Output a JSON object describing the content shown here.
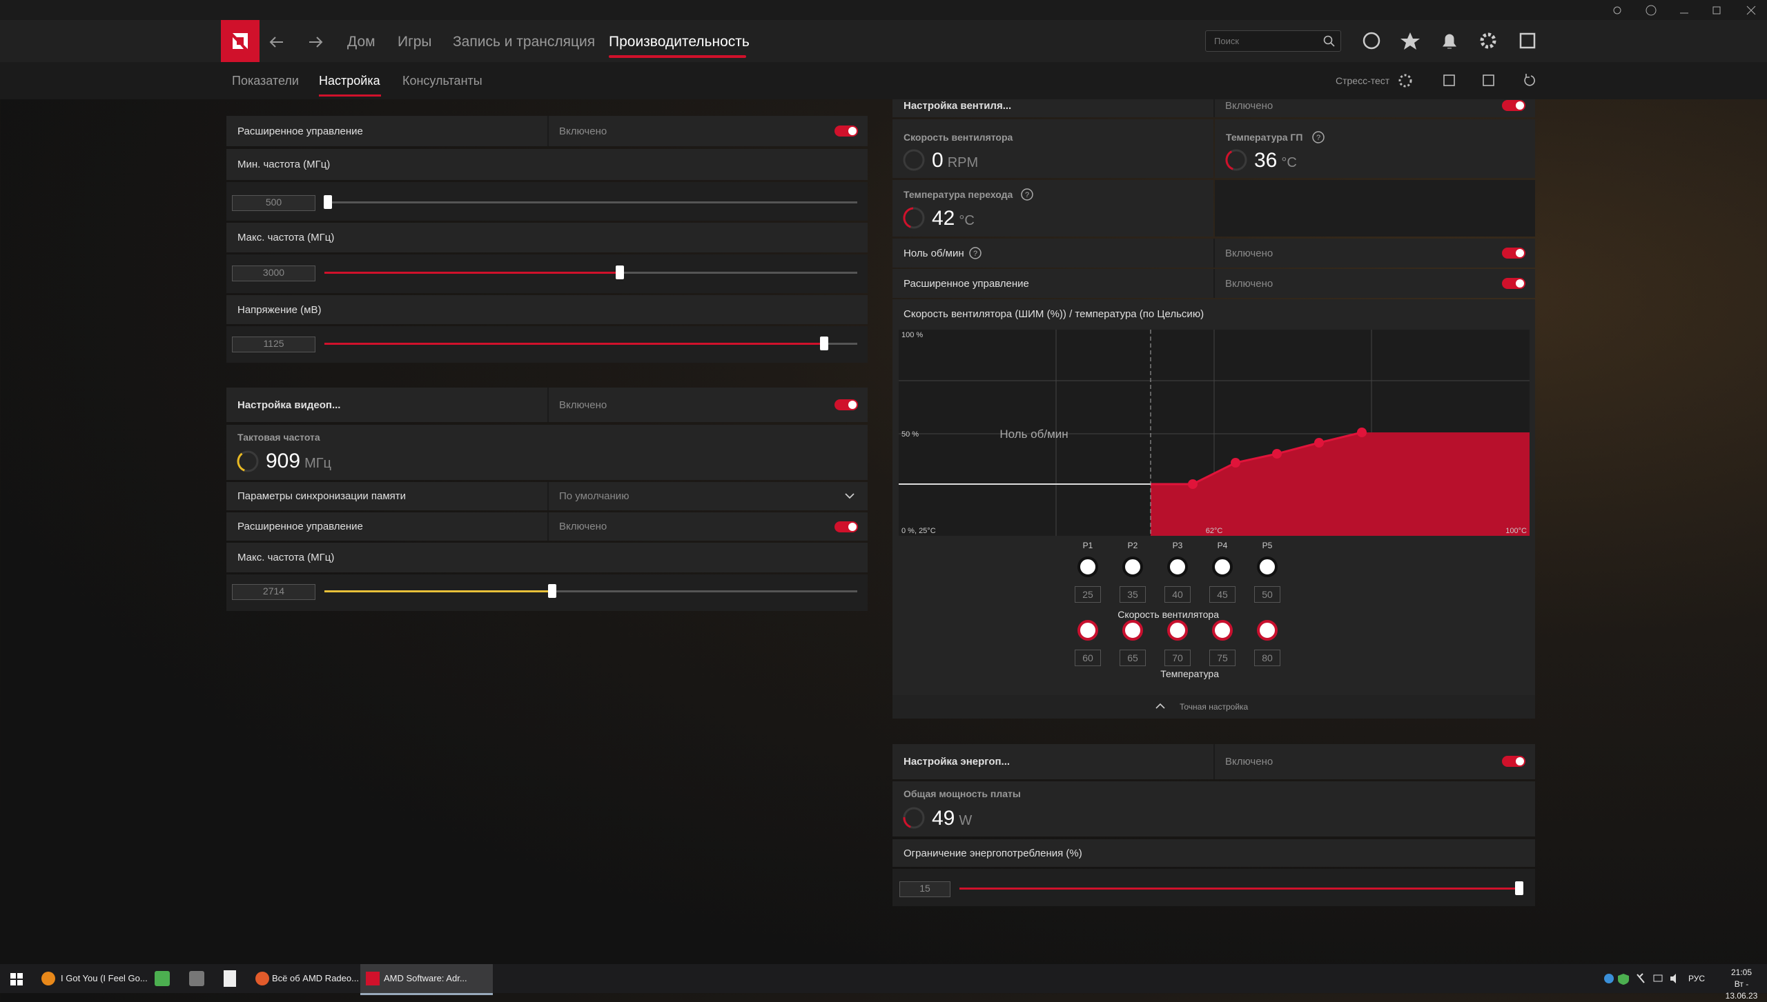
{
  "nav": {
    "tabs": [
      "Дом",
      "Игры",
      "Запись и трансляция",
      "Производительность"
    ],
    "search_placeholder": "Поиск"
  },
  "subnav": {
    "tabs": [
      "Показатели",
      "Настройка",
      "Консультанты"
    ],
    "stress_test": "Стресс-тест"
  },
  "gpu_tuning": {
    "advanced_control": {
      "label": "Расширенное управление",
      "state": "Включено"
    },
    "min_freq": {
      "label": "Мин. частота (МГц)",
      "value": 500
    },
    "max_freq": {
      "label": "Макс. частота (МГц)",
      "value": 3000
    },
    "voltage": {
      "label": "Напряжение (мВ)",
      "value": 1125
    }
  },
  "vram_tuning": {
    "title": "Настройка видеоп...",
    "state": "Включено",
    "clock": {
      "label": "Тактовая частота",
      "value": 909,
      "unit": "МГц"
    },
    "memory_timing": {
      "label": "Параметры синхронизации памяти",
      "value": "По умолчанию"
    },
    "advanced_control": {
      "label": "Расширенное управление",
      "state": "Включено"
    },
    "max_freq": {
      "label": "Макс. частота (МГц)",
      "value": 2714
    }
  },
  "fan_tuning": {
    "title": "Настройка вентиля...",
    "state": "Включено",
    "fan_speed": {
      "label": "Скорость вентилятора",
      "value": 0,
      "unit": "RPM"
    },
    "gpu_temp": {
      "label": "Температура ГП",
      "value": 36,
      "unit": "°C"
    },
    "junction_temp": {
      "label": "Температура перехода",
      "value": 42,
      "unit": "°C"
    },
    "zero_rpm": {
      "label": "Ноль об/мин",
      "state": "Включено"
    },
    "advanced_control": {
      "label": "Расширенное управление",
      "state": "Включено"
    },
    "curve": {
      "title": "Скорость вентилятора (ШИМ (%)) / температура (по Цельсию)",
      "y_top": "100 %",
      "y_mid": "50 %",
      "origin": "0 %, 25°C",
      "x_mid": "62°C",
      "x_end": "100°C",
      "zero_rpm_label": "Ноль об/мин",
      "points": [
        "P1",
        "P2",
        "P3",
        "P4",
        "P5"
      ],
      "speed_label": "Скорость вентилятора",
      "speeds": [
        25,
        35,
        40,
        45,
        50
      ],
      "temp_label": "Температура",
      "temps": [
        60,
        65,
        70,
        75,
        80
      ]
    },
    "fine_tuning": "Точная настройка"
  },
  "power_tuning": {
    "title": "Настройка энергоп...",
    "state": "Включено",
    "board_power": {
      "label": "Общая мощность платы",
      "value": 49,
      "unit": "W"
    },
    "power_limit": {
      "label": "Ограничение энергопотребления (%)",
      "value": 15
    }
  },
  "taskbar": {
    "apps": [
      "I Got You (I Feel Go...",
      "Всё об AMD Radeo...",
      "AMD Software: Adr..."
    ],
    "lang": "РУС",
    "time": "21:05",
    "date": "Вт - 13.06.23"
  }
}
